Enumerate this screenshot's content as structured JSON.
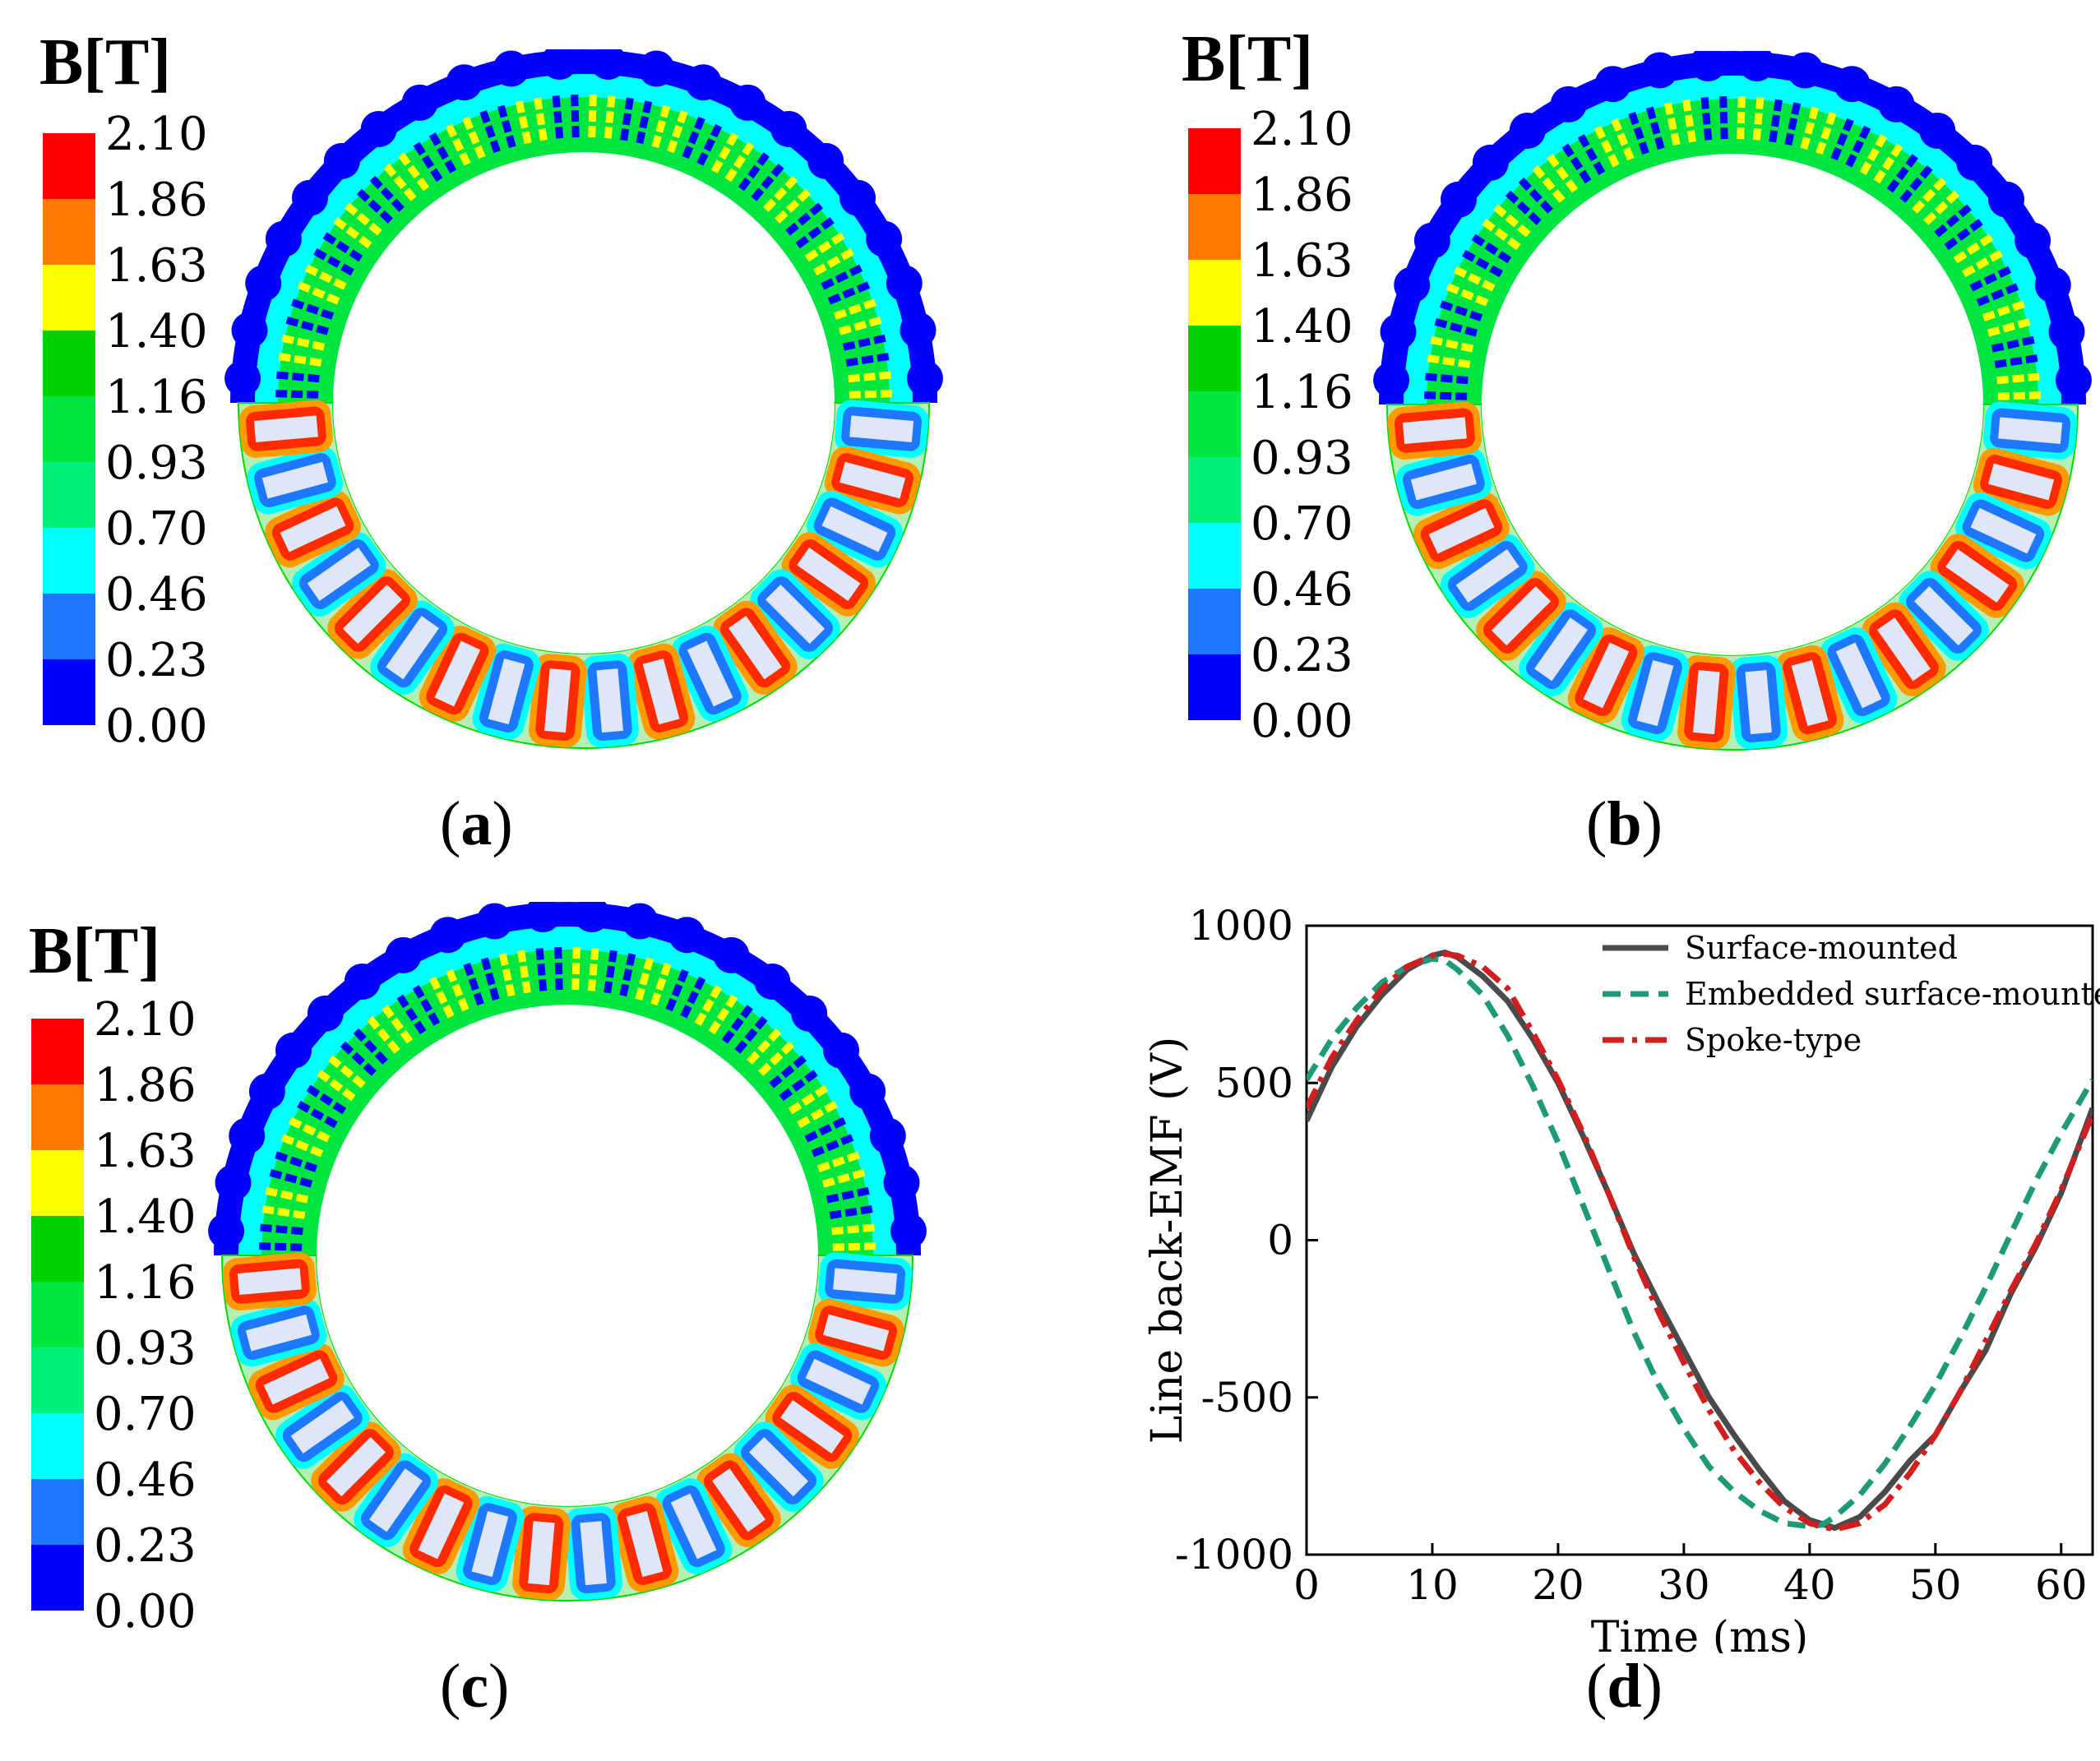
{
  "panels": [
    {
      "id": "a",
      "unit_label": "B[T]",
      "caption_letter": "a",
      "caption_open": "(",
      "caption_close": ")"
    },
    {
      "id": "b",
      "unit_label": "B[T]",
      "caption_letter": "b",
      "caption_open": "(",
      "caption_close": ")"
    },
    {
      "id": "c",
      "unit_label": "B[T]",
      "caption_letter": "c",
      "caption_open": "(",
      "caption_close": ")"
    },
    {
      "id": "d",
      "caption_letter": "d",
      "caption_open": "(",
      "caption_close": ")"
    }
  ],
  "colorbar": {
    "levels": [
      "2.10",
      "1.86",
      "1.63",
      "1.40",
      "1.16",
      "0.93",
      "0.70",
      "0.46",
      "0.23",
      "0.00"
    ],
    "colors": [
      "#ff0000",
      "#ff7800",
      "#ffff00",
      "#00d200",
      "#00e640",
      "#00f07a",
      "#00ffff",
      "#1e78ff",
      "#0000ff"
    ]
  },
  "field_colors": {
    "yoke_outer": "#0000ff",
    "yoke_mid": "#00ffff",
    "yoke_inner": "#00e640",
    "stator_back": "#b4f0b4",
    "stator_contour": "#00dc00",
    "slot_hot": "#ff2a00",
    "slot_warm": "#ff9a00",
    "slot_cool": "#1e78ff",
    "conductor": "#dfe6f7",
    "magnet_n": "#ffff00",
    "magnet_s": "#0000ff"
  },
  "chart_data": {
    "type": "line",
    "title": "",
    "xlabel": "Time (ms)",
    "ylabel": "Line back-EMF (V)",
    "xlim": [
      0,
      62.5
    ],
    "ylim": [
      -1000,
      1000
    ],
    "xticks": [
      0,
      10,
      20,
      30,
      40,
      50,
      60
    ],
    "yticks": [
      1000,
      500,
      0,
      -500,
      -1000
    ],
    "xtick_labels": [
      "0",
      "10",
      "20",
      "30",
      "40",
      "50",
      "60"
    ],
    "ytick_labels": [
      "1000",
      "500",
      "0",
      "-500",
      "-1000"
    ],
    "legend_position": "top-right",
    "series": [
      {
        "name": "Surface-mounted",
        "color": "#4a4a4a",
        "dash": "solid",
        "x": [
          0,
          2,
          4,
          6,
          8,
          10,
          11,
          12,
          14,
          16,
          18,
          20,
          22,
          24,
          26,
          28,
          30,
          32,
          34,
          36,
          38,
          40,
          42,
          44,
          46,
          48,
          50,
          52,
          54,
          56,
          58,
          60,
          62.5
        ],
        "y": [
          380,
          550,
          680,
          780,
          860,
          905,
          915,
          900,
          840,
          760,
          640,
          500,
          330,
          150,
          -40,
          -200,
          -350,
          -500,
          -620,
          -730,
          -830,
          -890,
          -915,
          -880,
          -800,
          -700,
          -620,
          -480,
          -350,
          -170,
          -20,
          150,
          420
        ]
      },
      {
        "name": "Embedded surface-mounted",
        "color": "#1e9a78",
        "dash": "dashed",
        "x": [
          0,
          2,
          4,
          6,
          8,
          10,
          11,
          12,
          14,
          16,
          18,
          20,
          22,
          24,
          26,
          28,
          30,
          32,
          34,
          36,
          38,
          40,
          41,
          42,
          44,
          46,
          48,
          50,
          52,
          54,
          56,
          58,
          60,
          62.5
        ],
        "y": [
          510,
          640,
          740,
          820,
          870,
          895,
          890,
          860,
          780,
          650,
          490,
          310,
          110,
          -90,
          -290,
          -460,
          -600,
          -720,
          -800,
          -860,
          -900,
          -910,
          -905,
          -880,
          -810,
          -710,
          -590,
          -460,
          -310,
          -150,
          20,
          190,
          340,
          510
        ]
      },
      {
        "name": "Spoke-type",
        "color": "#d21e1e",
        "dash": "dashdot",
        "x": [
          0,
          2,
          4,
          6,
          8,
          10,
          11,
          12,
          14,
          16,
          18,
          20,
          22,
          24,
          26,
          28,
          30,
          32,
          34,
          36,
          38,
          40,
          42,
          44,
          46,
          48,
          50,
          52,
          54,
          56,
          58,
          60,
          62.5
        ],
        "y": [
          420,
          580,
          700,
          800,
          870,
          905,
          910,
          905,
          870,
          800,
          660,
          510,
          340,
          150,
          -50,
          -230,
          -390,
          -540,
          -670,
          -770,
          -850,
          -900,
          -920,
          -900,
          -840,
          -740,
          -620,
          -480,
          -320,
          -160,
          -10,
          160,
          400
        ]
      }
    ]
  }
}
